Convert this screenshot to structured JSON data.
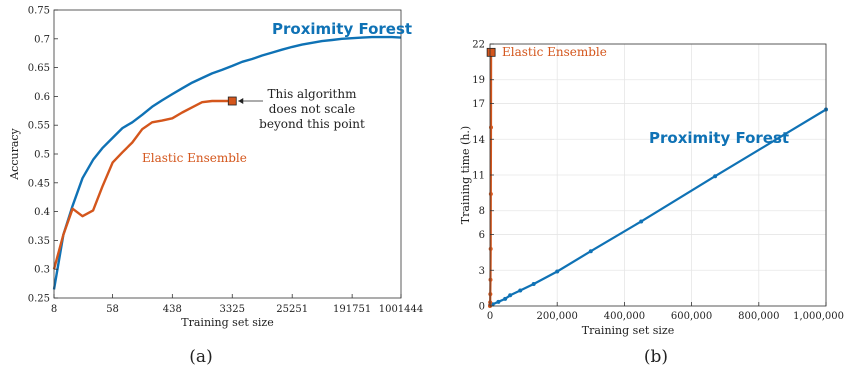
{
  "colors": {
    "pf": "#0f72b5",
    "ee": "#d4561c",
    "axis": "#333333",
    "grid": "#e6e6e6"
  },
  "chart_data": [
    {
      "type": "line",
      "panel_label": "(a)",
      "xlabel": "Training set size",
      "ylabel": "Accuracy",
      "x_scale": "log",
      "x_ticks": [
        8,
        58,
        438,
        3325,
        25251,
        191751,
        1001444
      ],
      "x_tick_labels": [
        "8",
        "58",
        "438",
        "3325",
        "25251",
        "191751",
        "1001444"
      ],
      "xlim": [
        8,
        1001444
      ],
      "ylim": [
        0.25,
        0.75
      ],
      "y_ticks": [
        0.25,
        0.3,
        0.35,
        0.4,
        0.45,
        0.5,
        0.55,
        0.6,
        0.65,
        0.7,
        0.75
      ],
      "y_tick_labels": [
        "0.25",
        "0.3",
        "0.35",
        "0.4",
        "0.45",
        "0.5",
        "0.55",
        "0.6",
        "0.65",
        "0.7",
        "0.75"
      ],
      "grid": false,
      "series": [
        {
          "name": "Proximity Forest",
          "color_key": "pf",
          "x": [
            8,
            11,
            15,
            21,
            30,
            41,
            58,
            81,
            113,
            158,
            221,
            309,
            438,
            612,
            857,
            1200,
            1680,
            2350,
            3325,
            4650,
            6510,
            9110,
            12750,
            17850,
            25251,
            35350,
            49490,
            69290,
            97000,
            135800,
            191751,
            268500,
            375900,
            526200,
            736700,
            1001444
          ],
          "y": [
            0.265,
            0.36,
            0.41,
            0.458,
            0.49,
            0.51,
            0.528,
            0.545,
            0.555,
            0.568,
            0.582,
            0.593,
            0.604,
            0.614,
            0.624,
            0.632,
            0.64,
            0.646,
            0.653,
            0.66,
            0.665,
            0.671,
            0.676,
            0.681,
            0.686,
            0.69,
            0.693,
            0.696,
            0.698,
            0.7,
            0.701,
            0.702,
            0.703,
            0.703,
            0.703,
            0.702
          ]
        },
        {
          "name": "Elastic Ensemble",
          "color_key": "ee",
          "x": [
            8,
            11,
            15,
            21,
            30,
            41,
            58,
            81,
            113,
            158,
            221,
            309,
            438,
            612,
            857,
            1200,
            1680,
            2350,
            3325
          ],
          "y": [
            0.3,
            0.36,
            0.405,
            0.392,
            0.402,
            0.443,
            0.485,
            0.503,
            0.52,
            0.543,
            0.555,
            0.558,
            0.562,
            0.572,
            0.581,
            0.59,
            0.592,
            0.592,
            0.592
          ]
        }
      ],
      "annotations": [
        {
          "text_lines": [
            "This algorithm",
            "does not scale",
            "beyond this point"
          ],
          "x": 3325,
          "y": 0.592
        }
      ]
    },
    {
      "type": "line",
      "panel_label": "(b)",
      "xlabel": "Training set size",
      "ylabel": "Training time (h.)",
      "xlim": [
        0,
        1000000
      ],
      "ylim": [
        0,
        22
      ],
      "x_ticks": [
        0,
        200000,
        400000,
        600000,
        800000,
        1000000
      ],
      "x_tick_labels": [
        "0",
        "200,000",
        "400,000",
        "600,000",
        "800,000",
        "1,000,000"
      ],
      "y_ticks": [
        0,
        3,
        6,
        8,
        11,
        14,
        17,
        19,
        22
      ],
      "y_tick_labels": [
        "0",
        "3",
        "6",
        "8",
        "11",
        "14",
        "17",
        "19",
        "22"
      ],
      "grid": true,
      "series": [
        {
          "name": "Proximity Forest",
          "color_key": "pf",
          "x": [
            0,
            8000,
            25000,
            45000,
            60000,
            90000,
            130000,
            200000,
            300000,
            450000,
            670000,
            1000000
          ],
          "y": [
            0.05,
            0.15,
            0.35,
            0.6,
            0.9,
            1.3,
            1.85,
            2.9,
            4.6,
            7.1,
            10.9,
            16.5
          ],
          "markers": true
        },
        {
          "name": "Elastic Ensemble",
          "color_key": "ee",
          "x": [
            0,
            500,
            1000,
            1500,
            2000,
            2500,
            3000,
            3325
          ],
          "y": [
            0.0,
            0.3,
            1.0,
            2.2,
            4.8,
            9.4,
            15.0,
            21.3
          ],
          "markers": true,
          "end_square": true
        }
      ]
    }
  ]
}
